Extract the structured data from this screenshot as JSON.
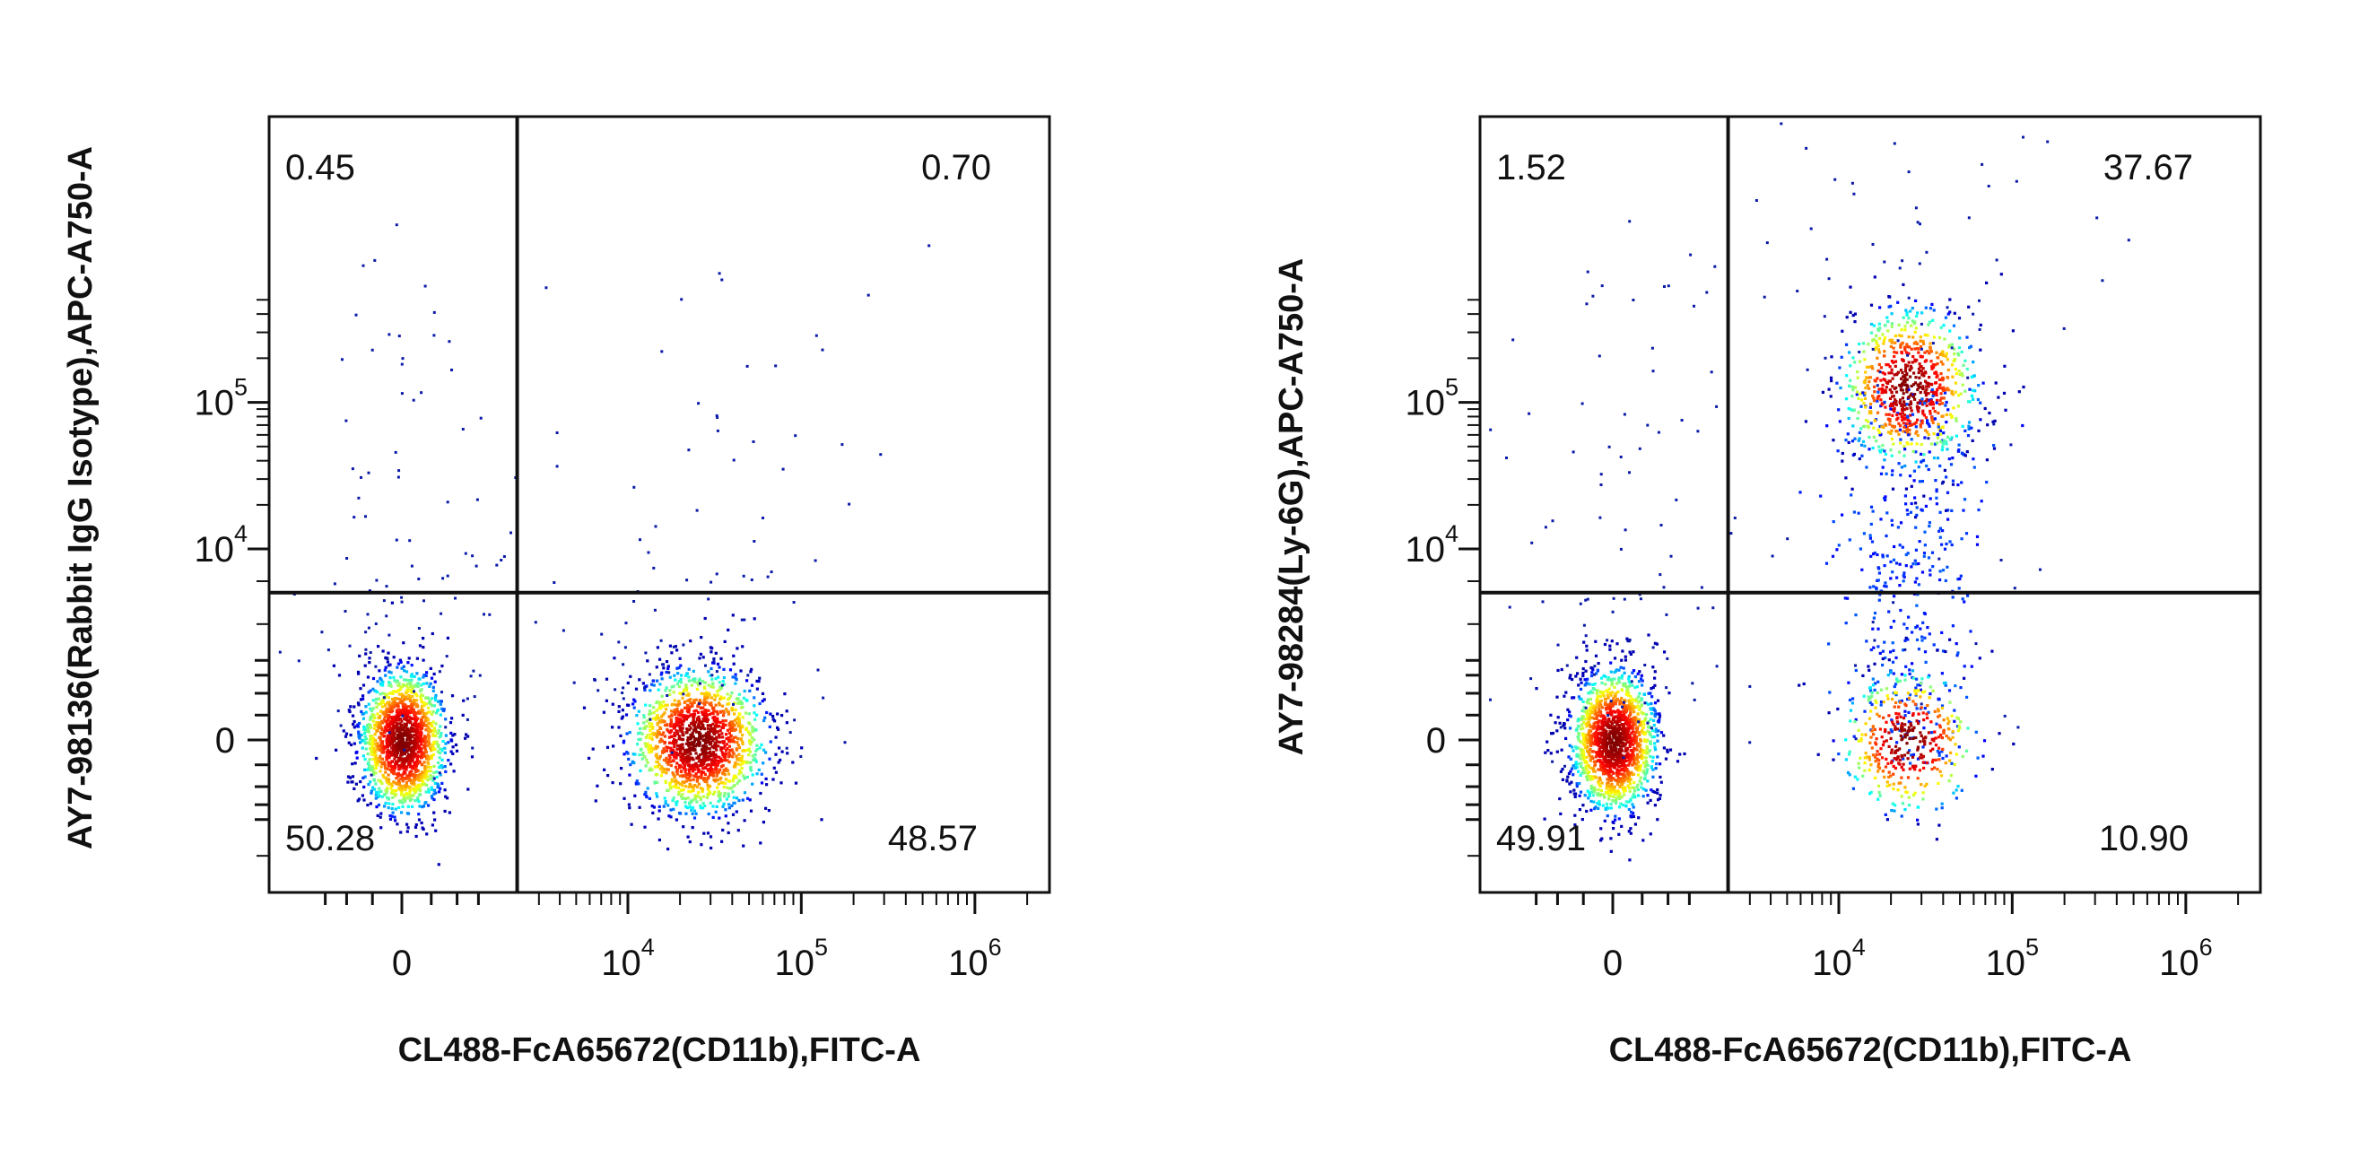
{
  "chart_data": [
    {
      "type": "scatter",
      "subtype": "flow-cytometry-density-dot-plot",
      "xlabel": "CL488-FcA65672(CD11b),FITC-A",
      "ylabel": "AY7-98136(Rabbit IgG Isotype),APC-A750-A",
      "x_scale": "biexponential",
      "y_scale": "biexponential",
      "x_ticks": [
        {
          "value": 0,
          "label": "0",
          "exp": ""
        },
        {
          "value": 10000,
          "label": "10",
          "exp": "4"
        },
        {
          "value": 100000,
          "label": "10",
          "exp": "5"
        },
        {
          "value": 1000000,
          "label": "10",
          "exp": "6"
        }
      ],
      "y_ticks": [
        {
          "value": 0,
          "label": "0",
          "exp": ""
        },
        {
          "value": 10000,
          "label": "10",
          "exp": "4"
        },
        {
          "value": 100000,
          "label": "10",
          "exp": "5"
        }
      ],
      "gate_x": 2200,
      "gate_y": 5000,
      "quadrants": {
        "upper_left": "0.45",
        "upper_right": "0.70",
        "lower_left": "50.28",
        "lower_right": "48.57"
      },
      "populations": [
        {
          "x_center": 0,
          "y_center": 0,
          "n": 1600
        },
        {
          "x_center": 25000,
          "y_center": 0,
          "n": 1600
        }
      ],
      "grid": false,
      "legend": "none"
    },
    {
      "type": "scatter",
      "subtype": "flow-cytometry-density-dot-plot",
      "xlabel": "CL488-FcA65672(CD11b),FITC-A",
      "ylabel": "AY7-98284(Ly-6G),APC-A750-A",
      "x_scale": "biexponential",
      "y_scale": "biexponential",
      "x_ticks": [
        {
          "value": 0,
          "label": "0",
          "exp": ""
        },
        {
          "value": 10000,
          "label": "10",
          "exp": "4"
        },
        {
          "value": 100000,
          "label": "10",
          "exp": "5"
        },
        {
          "value": 1000000,
          "label": "10",
          "exp": "6"
        }
      ],
      "y_ticks": [
        {
          "value": 0,
          "label": "0",
          "exp": ""
        },
        {
          "value": 10000,
          "label": "10",
          "exp": "4"
        },
        {
          "value": 100000,
          "label": "10",
          "exp": "5"
        }
      ],
      "gate_x": 2200,
      "gate_y": 5000,
      "quadrants": {
        "upper_left": "1.52",
        "upper_right": "37.67",
        "lower_left": "49.91",
        "lower_right": "10.90"
      },
      "populations": [
        {
          "x_center": 0,
          "y_center": 0,
          "n": 1600
        },
        {
          "x_center": 25000,
          "y_center": 130000,
          "n": 1200
        },
        {
          "x_center": 25000,
          "y_center": 0,
          "n": 400
        }
      ],
      "grid": false,
      "legend": "none"
    }
  ]
}
